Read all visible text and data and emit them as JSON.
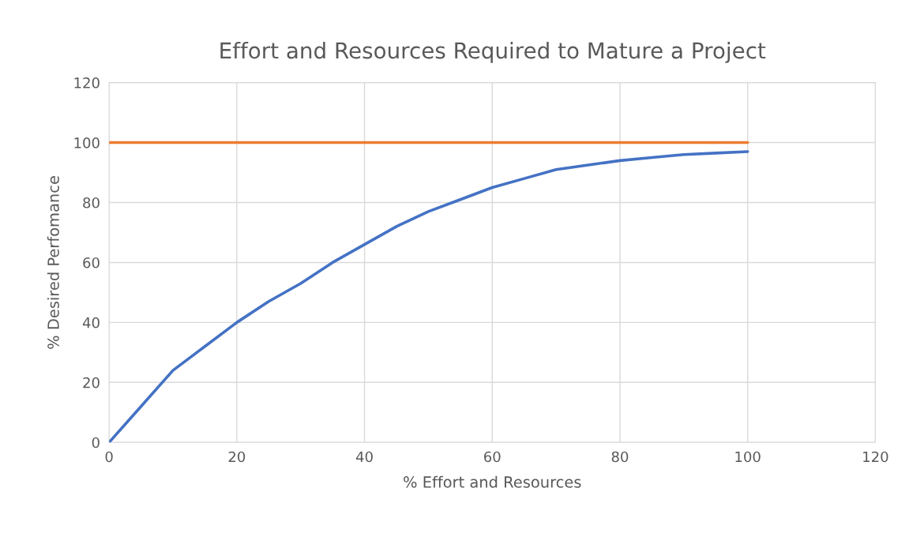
{
  "chart_data": {
    "type": "line",
    "title": "Effort and Resources Required to Mature a Project",
    "xlabel": "% Effort and Resources",
    "ylabel": "% Desired Perfomance",
    "series": [
      {
        "color": "#4472c4",
        "x": [
          0,
          5,
          10,
          15,
          20,
          25,
          30,
          35,
          40,
          45,
          50,
          55,
          60,
          65,
          70,
          75,
          80,
          85,
          90,
          95,
          100
        ],
        "values": [
          0,
          12,
          24,
          32,
          40,
          47,
          53,
          60,
          66,
          72,
          77,
          81,
          85,
          88,
          91,
          92.5,
          94,
          95,
          96,
          96.5,
          97
        ]
      },
      {
        "color": "#ed7d31",
        "x": [
          0,
          100
        ],
        "values": [
          100,
          100
        ]
      }
    ],
    "xlim": [
      0,
      120
    ],
    "xticks": [
      0,
      20,
      40,
      60,
      80,
      100,
      120
    ],
    "ylim": [
      0,
      120
    ],
    "yticks": [
      0,
      20,
      40,
      60,
      80,
      100,
      120
    ],
    "grid": true,
    "marker": "none",
    "line_style": "solid"
  }
}
